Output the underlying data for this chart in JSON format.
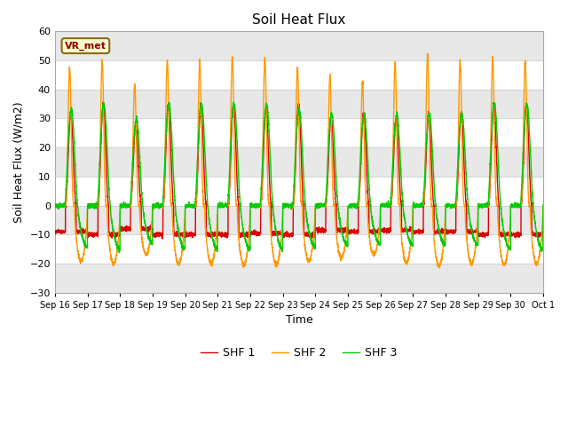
{
  "title": "Soil Heat Flux",
  "ylabel": "Soil Heat Flux (W/m2)",
  "xlabel": "Time",
  "ylim": [
    -30,
    60
  ],
  "yticks": [
    -30,
    -20,
    -10,
    0,
    10,
    20,
    30,
    40,
    50,
    60
  ],
  "series": [
    "SHF 1",
    "SHF 2",
    "SHF 3"
  ],
  "colors": [
    "#dd0000",
    "#ff9900",
    "#00cc00"
  ],
  "vr_met_label": "VR_met",
  "x_tick_labels": [
    "Sep 16",
    "Sep 17",
    "Sep 18",
    "Sep 19",
    "Sep 20",
    "Sep 21",
    "Sep 22",
    "Sep 23",
    "Sep 24",
    "Sep 25",
    "Sep 26",
    "Sep 27",
    "Sep 28",
    "Sep 29",
    "Sep 30",
    "Oct 1"
  ],
  "n_days": 15,
  "points_per_day": 288,
  "fig_bg": "#ffffff",
  "plot_bg": "#ffffff",
  "band_color": "#e8e8e8",
  "grid_color": "#cccccc"
}
